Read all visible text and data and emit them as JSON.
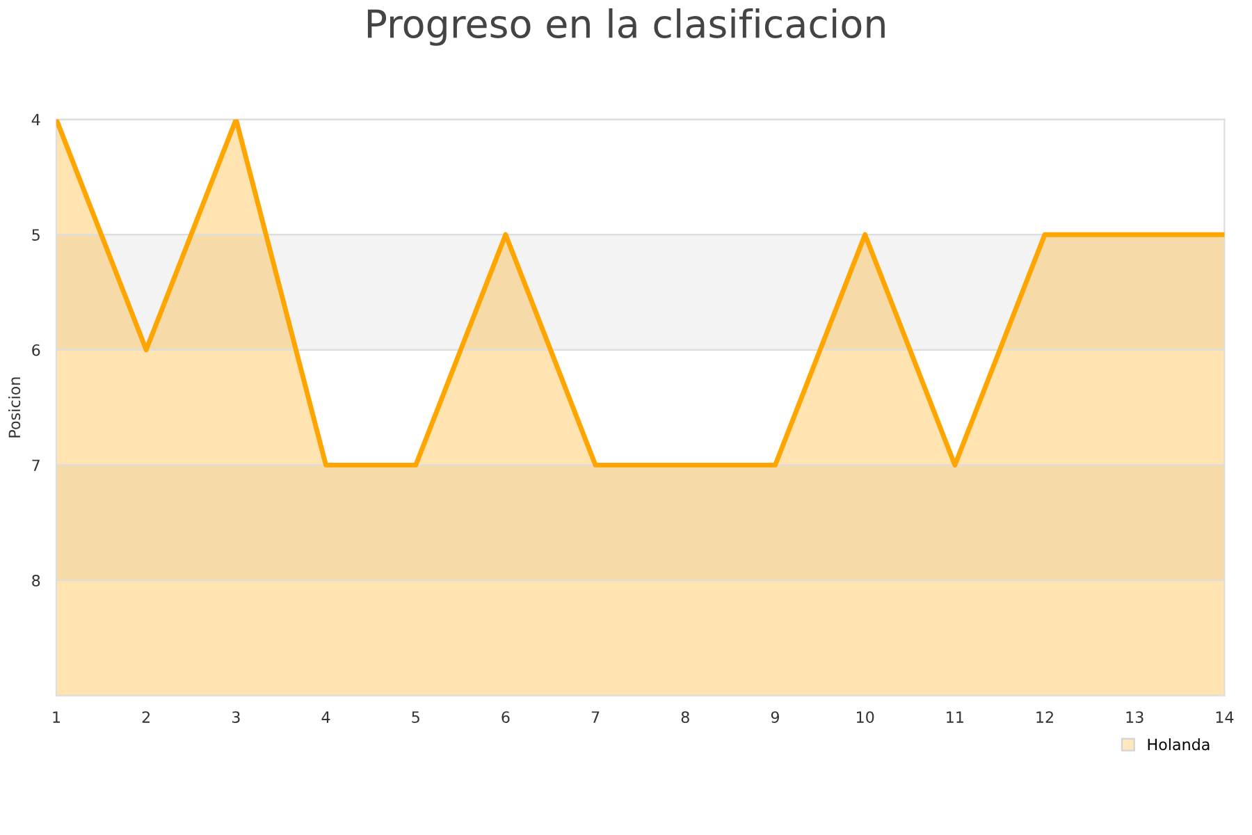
{
  "chart_data": {
    "type": "area",
    "title": "Progreso en la clasificacion",
    "ylabel": "Posicion",
    "x": [
      1,
      2,
      3,
      4,
      5,
      6,
      7,
      8,
      9,
      10,
      11,
      12,
      13,
      14
    ],
    "series": [
      {
        "name": "Holanda",
        "color": "#ffa500",
        "values": [
          4,
          6,
          4,
          7,
          7,
          5,
          7,
          7,
          7,
          5,
          7,
          5,
          5,
          5
        ]
      }
    ],
    "xlim": [
      1,
      14
    ],
    "xticks": [
      1,
      2,
      3,
      4,
      5,
      6,
      7,
      8,
      9,
      10,
      11,
      12,
      13,
      14
    ],
    "ylim": [
      9,
      4
    ],
    "yticks": [
      4,
      5,
      6,
      7,
      8
    ],
    "bands": [
      {
        "axis": "y",
        "from": 5,
        "to": 6,
        "color": "#f3f3f3"
      },
      {
        "axis": "y",
        "from": 7,
        "to": 8,
        "color": "#f3f3f3"
      }
    ],
    "grid": "y",
    "legend": "bottom right"
  }
}
